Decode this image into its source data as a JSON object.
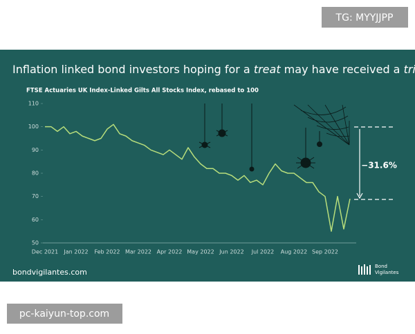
{
  "watermark_top": "TG: MYYJJPP",
  "watermark_bottom": "pc-kaiyun-top.com",
  "chart_data": {
    "type": "line",
    "title_parts": [
      "Inflation linked bond investors hoping for a ",
      "treat",
      " may have received a ",
      "trick"
    ],
    "subtitle": "FTSE Actuaries UK Index-Linked Gilts All Stocks Index, rebased to 100",
    "categories": [
      "Dec 2021",
      null,
      null,
      null,
      null,
      "Jan 2022",
      null,
      null,
      null,
      null,
      "Feb 2022",
      null,
      null,
      null,
      null,
      "Mar 2022",
      null,
      null,
      null,
      null,
      "Apr 2022",
      null,
      null,
      null,
      null,
      "May 2022",
      null,
      null,
      null,
      null,
      "Jun 2022",
      null,
      null,
      null,
      null,
      "Jul 2022",
      null,
      null,
      null,
      null,
      "Aug 2022",
      null,
      null,
      null,
      null,
      "Sep 2022",
      null,
      null,
      null,
      null
    ],
    "series": [
      {
        "name": "FTSE Actuaries UK Index-Linked Gilts All Stocks Index",
        "color": "#b8de7c",
        "values": [
          100,
          100,
          98,
          100,
          97,
          98,
          96,
          95,
          94,
          95,
          99,
          101,
          97,
          96,
          94,
          93,
          92,
          90,
          89,
          88,
          90,
          88,
          86,
          91,
          87,
          84,
          82,
          82,
          80,
          80,
          79,
          77,
          79,
          76,
          77,
          75,
          80,
          84,
          81,
          80,
          80,
          78,
          76,
          76,
          72,
          70,
          55,
          70,
          56,
          69
        ]
      }
    ],
    "ylim": [
      50,
      110
    ],
    "yticks": [
      50,
      60,
      70,
      80,
      90,
      100,
      110
    ],
    "annotation": "−31.6%",
    "source": "bondvigilantes.com",
    "logo": [
      "Bond",
      "Vigilantes"
    ]
  }
}
